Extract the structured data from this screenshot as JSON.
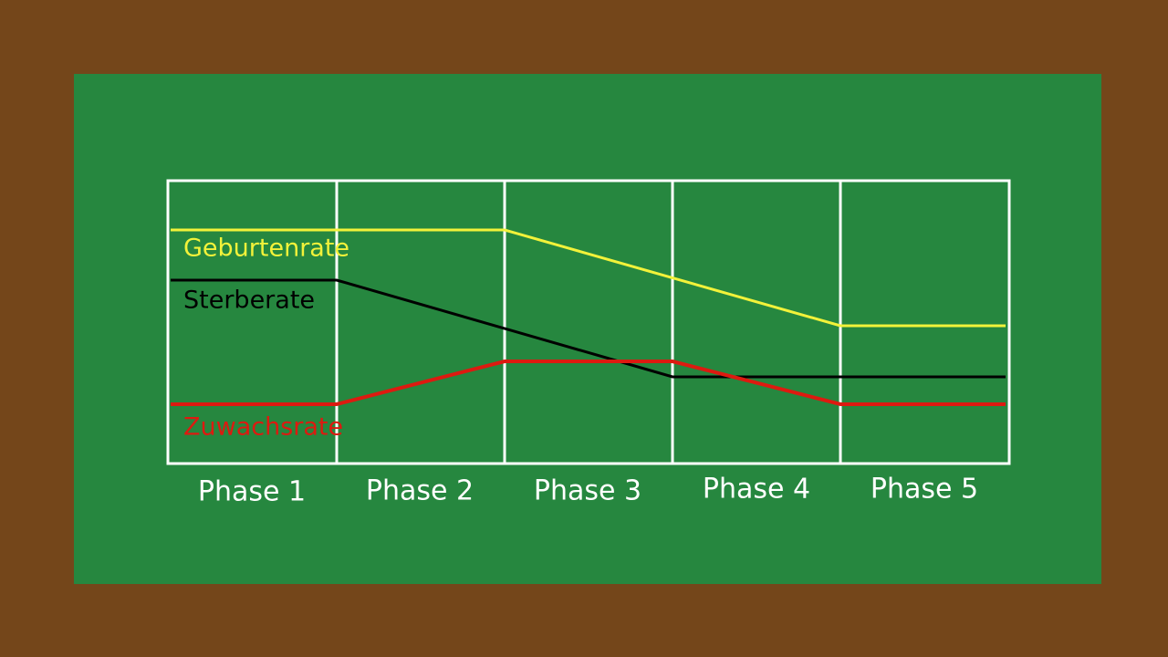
{
  "curve_labels": [
    "Geburtenrate",
    "Sterberate",
    "Zuwachsrate"
  ],
  "phases": [
    "Phase 1",
    "Phase 2",
    "Phase 3",
    "Phase 4",
    "Phase 5"
  ]
}
